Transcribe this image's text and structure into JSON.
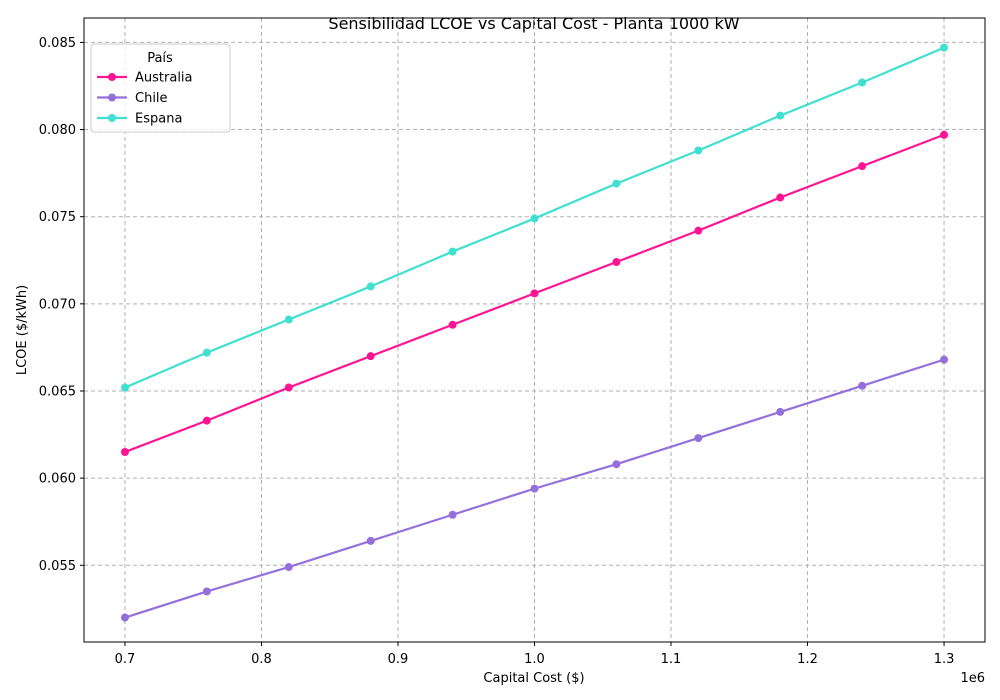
{
  "chart_data": {
    "type": "line",
    "title": "Sensibilidad LCOE vs Capital Cost - Planta 1000 kW",
    "xlabel": "Capital Cost ($)",
    "ylabel": "LCOE ($/kWh)",
    "x_offset_label": "1e6",
    "x_ticks": [
      "0.7",
      "0.8",
      "0.9",
      "1.0",
      "1.1",
      "1.2",
      "1.3"
    ],
    "y_ticks": [
      "0.055",
      "0.060",
      "0.065",
      "0.070",
      "0.075",
      "0.080",
      "0.085"
    ],
    "xlim": [
      670000,
      1330000
    ],
    "ylim": [
      0.0506,
      0.0864
    ],
    "grid": true,
    "legend": {
      "title": "País",
      "placement": "top-left"
    },
    "x": [
      700000,
      760000,
      820000,
      880000,
      940000,
      1000000,
      1060000,
      1120000,
      1180000,
      1240000,
      1300000
    ],
    "series": [
      {
        "name": "Australia",
        "color": "#ff1493",
        "values": [
          0.0615,
          0.0633,
          0.0652,
          0.067,
          0.0688,
          0.0706,
          0.0724,
          0.0742,
          0.0761,
          0.0779,
          0.0797
        ]
      },
      {
        "name": "Chile",
        "color": "#9370db",
        "values": [
          0.052,
          0.0535,
          0.0549,
          0.0564,
          0.0579,
          0.0594,
          0.0608,
          0.0623,
          0.0638,
          0.0653,
          0.0668
        ]
      },
      {
        "name": "Espana",
        "color": "#40e0d0",
        "values": [
          0.0652,
          0.0672,
          0.0691,
          0.071,
          0.073,
          0.0749,
          0.0769,
          0.0788,
          0.0808,
          0.0827,
          0.0847
        ]
      }
    ]
  }
}
